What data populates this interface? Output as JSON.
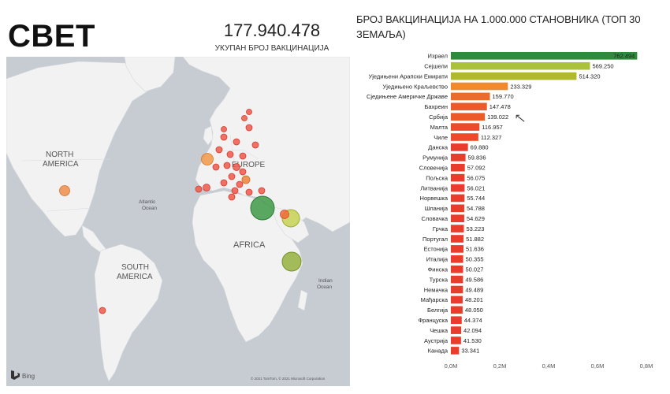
{
  "header": {
    "title": "СВЕТ",
    "total_value": "177.940.478",
    "total_label": "УКУПАН БРОЈ ВАКЦИНАЦИЈА"
  },
  "map": {
    "labels": {
      "north_america_line1": "NORTH",
      "north_america_line2": "AMERICA",
      "europe": "EUROPE",
      "africa": "AFRICA",
      "south_america_line1": "SOUTH",
      "south_america_line2": "AMERICA",
      "atlantic_line1": "Atlantic",
      "atlantic_line2": "Ocean",
      "indian_line1": "Indian",
      "indian_line2": "Ocean"
    },
    "bing": "Bing",
    "copyright": "© 2021 TomTom, © 2021 Microsoft Corporation"
  },
  "chart_data": {
    "type": "bar",
    "orientation": "horizontal",
    "title": "БРОЈ ВАКЦИНАЦИЈА НА 1.000.000 СТАНОВНИКА (ТОП 30 ЗЕМАЉА)",
    "categories": [
      "Израел",
      "Сејшели",
      "Уједињени Арапски Емирати",
      "Уједињено Краљевство",
      "Сједињене Америчке Државе",
      "Бахреин",
      "Србија",
      "Малта",
      "Чиле",
      "Данска",
      "Румунија",
      "Словенија",
      "Пољска",
      "Литванија",
      "Норвешка",
      "Шпанија",
      "Словачка",
      "Грчка",
      "Португал",
      "Естонија",
      "Италија",
      "Финска",
      "Турска",
      "Немачка",
      "Мађарска",
      "Белгија",
      "Француска",
      "Чешка",
      "Аустрија",
      "Канада"
    ],
    "values": [
      762494,
      569250,
      514320,
      233329,
      159770,
      147478,
      139022,
      116957,
      112327,
      69880,
      59836,
      57092,
      56075,
      56021,
      55744,
      54788,
      54629,
      53223,
      51882,
      51636,
      50355,
      50027,
      49586,
      49489,
      48201,
      48050,
      44374,
      42094,
      41530,
      33341
    ],
    "value_labels": [
      "762.494",
      "569.250",
      "514.320",
      "233.329",
      "159.770",
      "147.478",
      "139.022",
      "116.957",
      "112.327",
      "69.880",
      "59.836",
      "57.092",
      "56.075",
      "56.021",
      "55.744",
      "54.788",
      "54.629",
      "53.223",
      "51.882",
      "51.636",
      "50.355",
      "50.027",
      "49.586",
      "49.489",
      "48.201",
      "48.050",
      "44.374",
      "42.094",
      "41.530",
      "33.341"
    ],
    "colors": [
      "#2e8b3a",
      "#a9c23a",
      "#b0b82c",
      "#f08a2e",
      "#ec6a2a",
      "#ec5a2a",
      "#ec5a2a",
      "#ec4a2a",
      "#ec4a2a",
      "#e93c2c",
      "#e93c2c",
      "#e93c2c",
      "#e93c2c",
      "#e93c2c",
      "#e93c2c",
      "#e93c2c",
      "#e93c2c",
      "#e93c2c",
      "#e93c2c",
      "#e93c2c",
      "#e93c2c",
      "#e93c2c",
      "#e93c2c",
      "#e93c2c",
      "#e93c2c",
      "#e93c2c",
      "#e93c2c",
      "#e93c2c",
      "#e93c2c",
      "#e93c2c"
    ],
    "xlim": [
      0,
      800000
    ],
    "xticks": [
      0,
      200000,
      400000,
      600000,
      800000
    ],
    "xtick_labels": [
      "0,0M",
      "0,2M",
      "0,4M",
      "0,6M",
      "0,8M"
    ]
  }
}
